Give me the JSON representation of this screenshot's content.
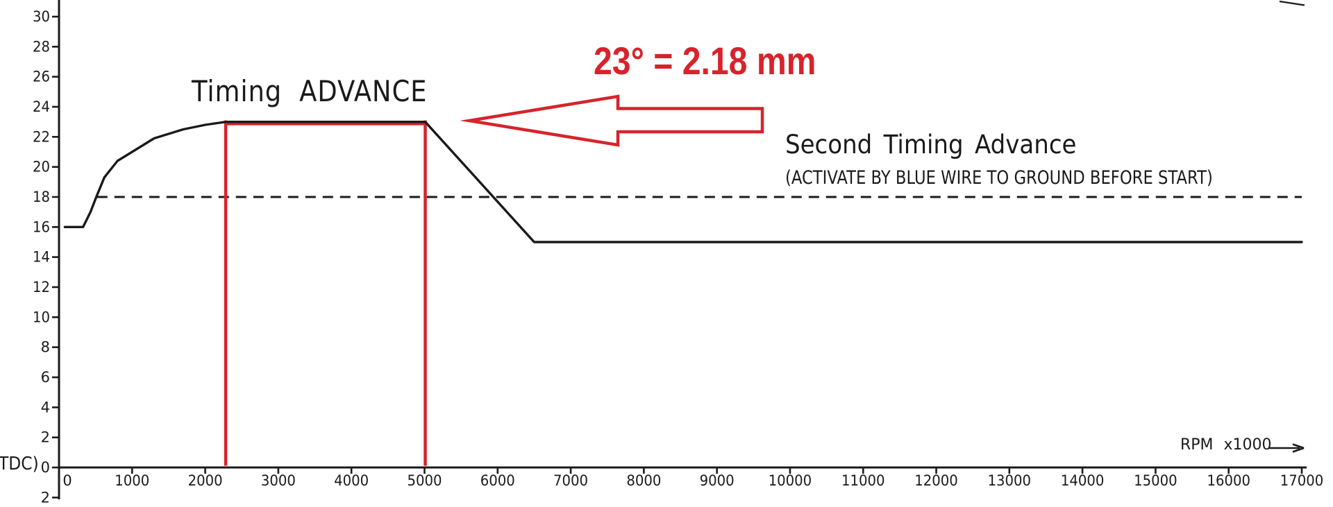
{
  "page": {
    "background": "#ffffff"
  },
  "colors": {
    "accent_red": "#d7232b",
    "line_black": "#1a1a1a"
  },
  "annotations": {
    "timing_advance_label": "Timing ADVANCE",
    "measurement_label": "23° = 2.18 mm",
    "second_timing_title": "Second Timing Advance",
    "second_timing_subtitle": "(ACTIVATE BY BLUE WIRE TO GROUND BEFORE START)",
    "rpm_axis_label": "RPM x1000",
    "y_axis_partial_label": "TDC)"
  },
  "chart_data": {
    "type": "line",
    "title": "Timing ADVANCE",
    "xlabel": "RPM x1000",
    "ylabel": "TDC)",
    "xlim": [
      0,
      17000
    ],
    "ylim": [
      -2,
      31
    ],
    "grid": false,
    "legend_position": "none",
    "x_ticks": [
      0,
      1000,
      2000,
      3000,
      4000,
      5000,
      6000,
      7000,
      8000,
      9000,
      10000,
      11000,
      12000,
      13000,
      14000,
      15000,
      16000,
      17000
    ],
    "x_tick_labels": [
      "0",
      "1000",
      "2000",
      "3000",
      "4000",
      "5000",
      "6000",
      "7000",
      "8000",
      "9000",
      "10000",
      "11000",
      "12000",
      "13000",
      "14000",
      "15000",
      "16000",
      "17000"
    ],
    "y_ticks": [
      30,
      28,
      26,
      24,
      22,
      20,
      18,
      16,
      14,
      12,
      10,
      8,
      6,
      4,
      2,
      0,
      -2
    ],
    "y_tick_labels": [
      "30",
      "28",
      "26",
      "24",
      "22",
      "20",
      "18",
      "16",
      "14",
      "12",
      "10",
      "8",
      "6",
      "4",
      "2",
      "0",
      "2"
    ],
    "series": [
      {
        "name": "Timing ADVANCE curve",
        "style": "solid",
        "color": "#1a1a1a",
        "points_rpm_deg": [
          [
            80,
            16
          ],
          [
            330,
            16
          ],
          [
            430,
            17
          ],
          [
            510,
            18
          ],
          [
            620,
            19.3
          ],
          [
            800,
            20.4
          ],
          [
            1000,
            21
          ],
          [
            1300,
            21.9
          ],
          [
            1700,
            22.5
          ],
          [
            2000,
            22.8
          ],
          [
            2280,
            23
          ],
          [
            5010,
            23
          ],
          [
            6500,
            15
          ],
          [
            17000,
            15
          ]
        ]
      },
      {
        "name": "Second Timing Advance (dashed)",
        "style": "dashed",
        "color": "#1a1a1a",
        "points_rpm_deg": [
          [
            520,
            18
          ],
          [
            17000,
            18
          ]
        ]
      }
    ],
    "red_markers": {
      "vertical_lines_rpm": [
        2280,
        5010
      ],
      "horizontal_line": {
        "deg": 23,
        "from_rpm": 2280,
        "to_rpm": 5010
      },
      "callout_text": "23° = 2.18 mm"
    }
  }
}
